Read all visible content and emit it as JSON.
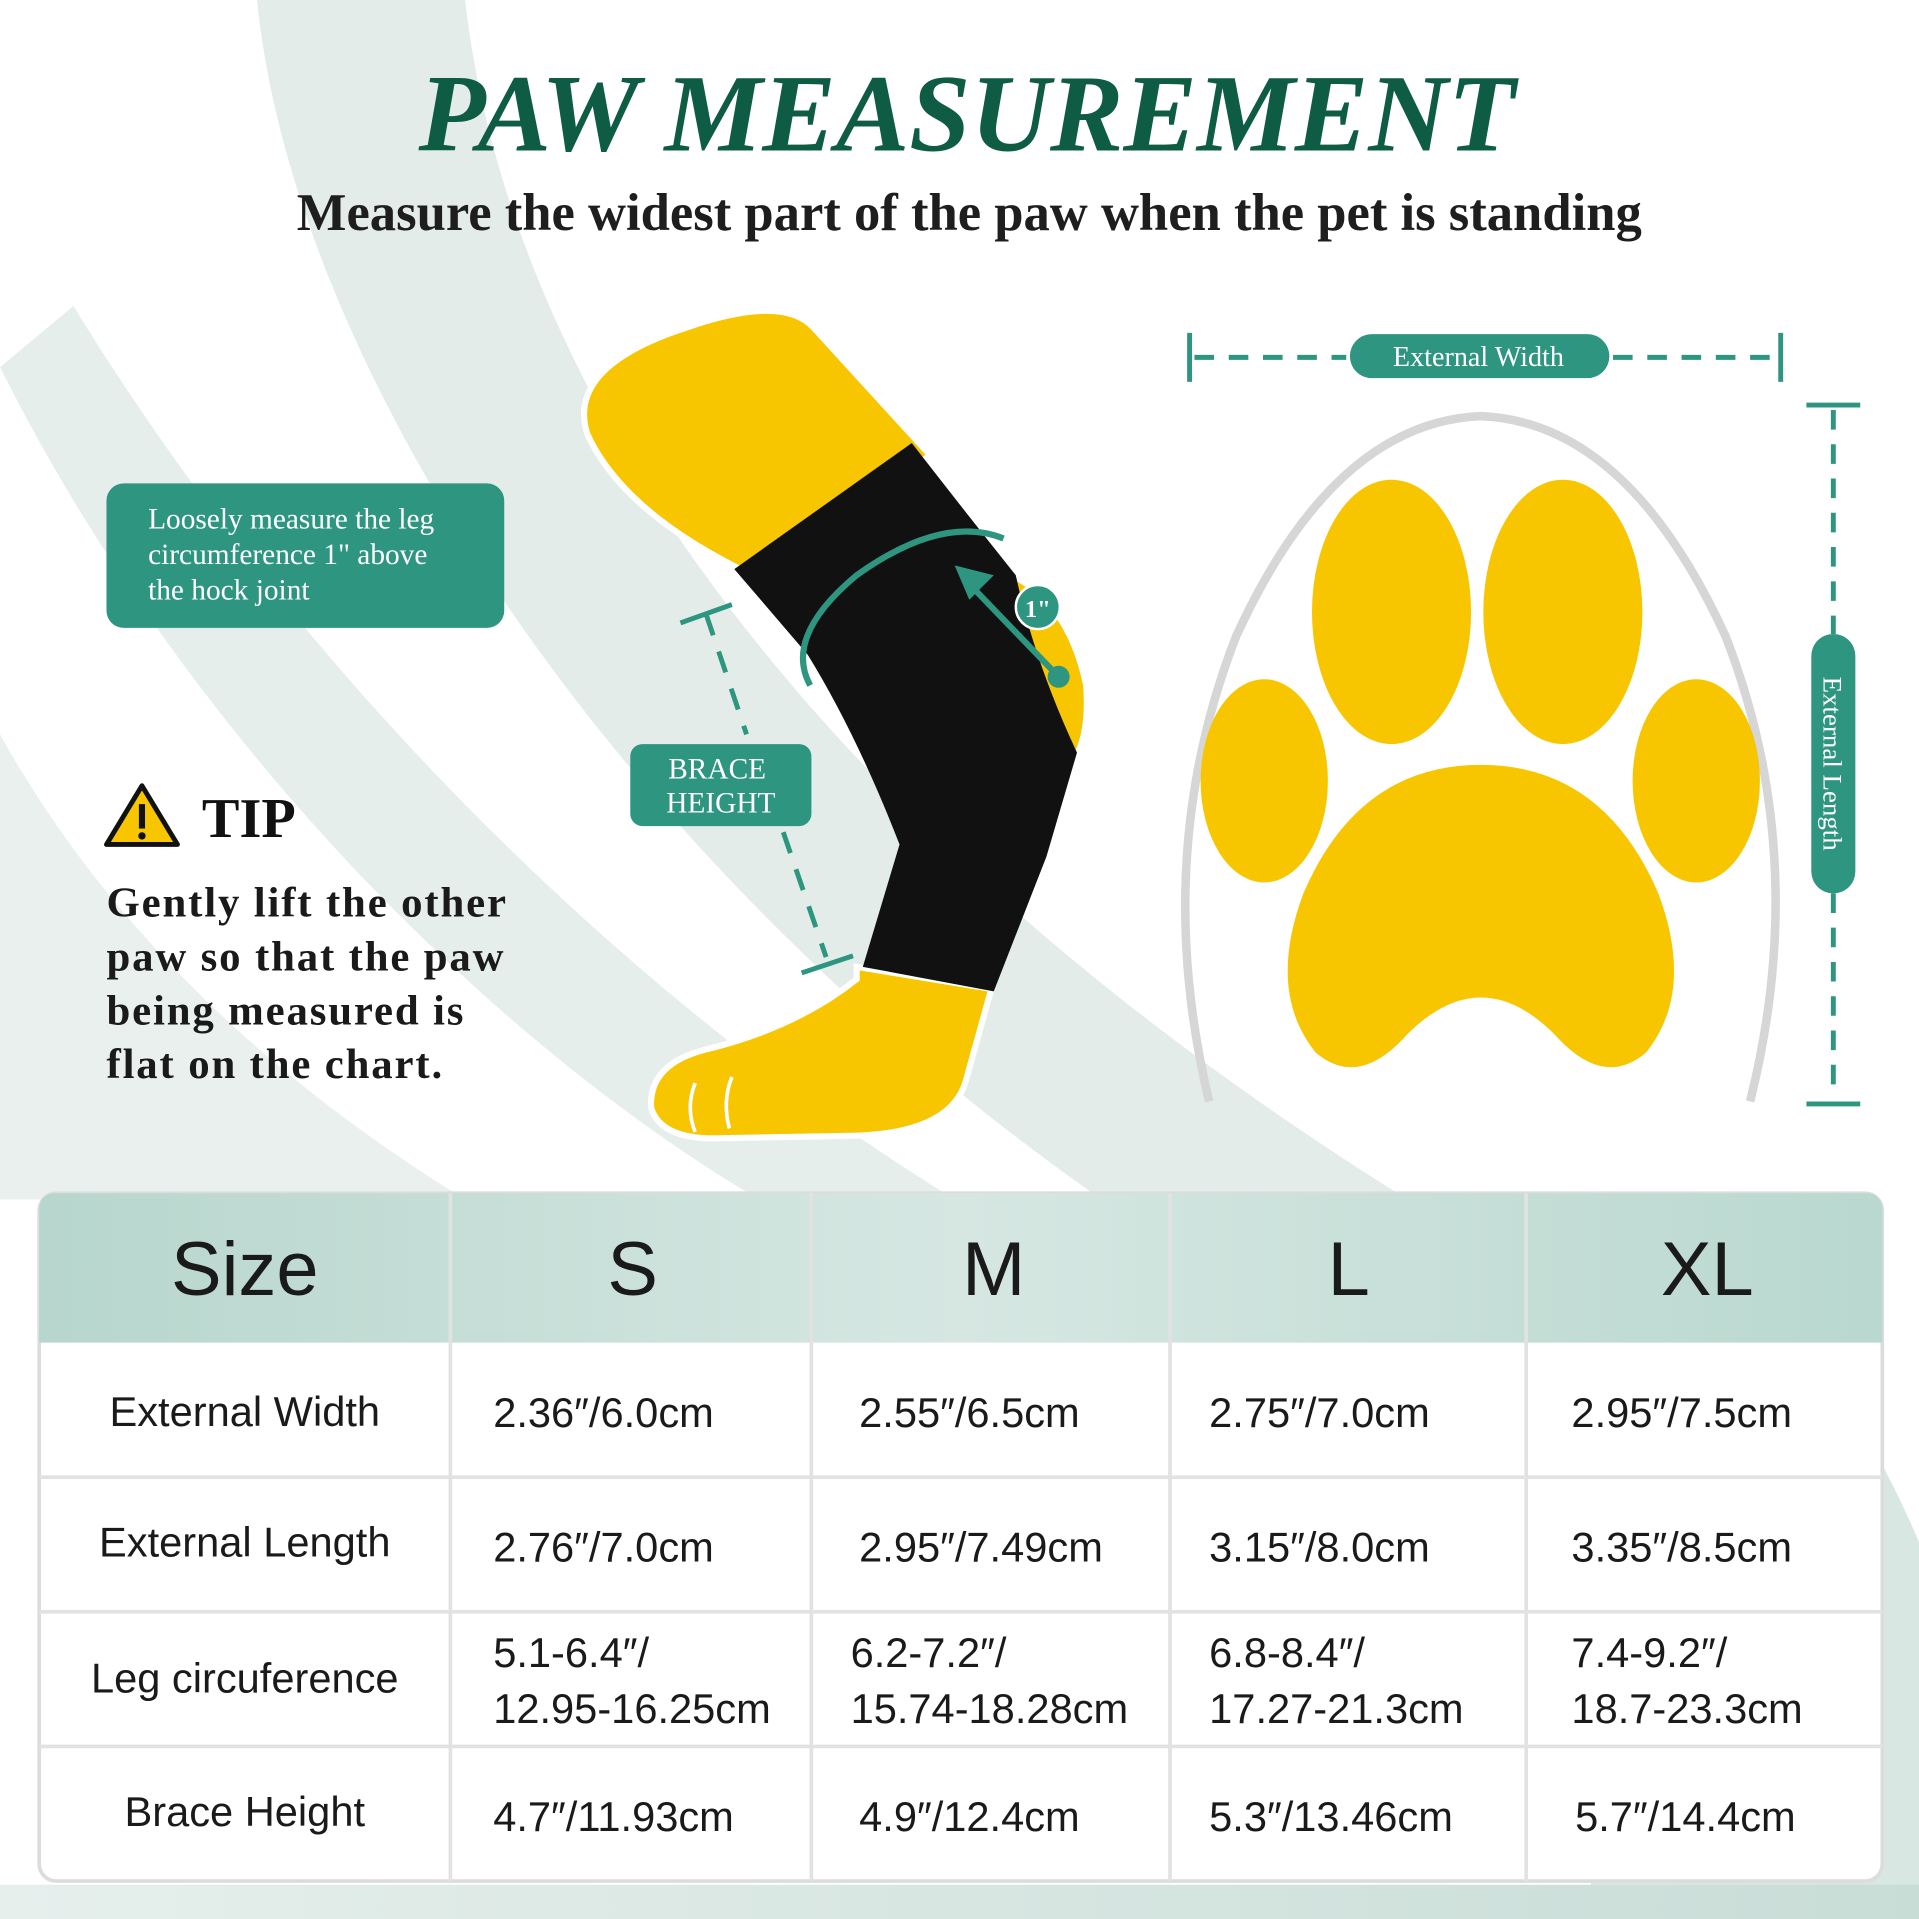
{
  "header": {
    "title": "PAW MEASUREMENT",
    "subtitle": "Measure the widest part of the paw when the pet is standing"
  },
  "colors": {
    "brand_green": "#0f5c44",
    "teal": "#2e9580",
    "paw_yellow": "#f7c600",
    "brace_black": "#111111",
    "table_header": "#b9d8cf"
  },
  "callout": {
    "lines": [
      "Loosely measure the leg",
      "circumference 1\" above",
      "the hock joint"
    ]
  },
  "tip": {
    "icon": "warning-icon",
    "title": "TIP",
    "lines": [
      "Gently lift the other",
      "paw so that the paw",
      "being measured is",
      "flat on the chart."
    ]
  },
  "diagram": {
    "brace_height_lines": [
      "BRACE",
      "HEIGHT"
    ],
    "offset_label": "1\"",
    "external_width": "External Width",
    "external_length": "External Length"
  },
  "table": {
    "headers": [
      "Size",
      "S",
      "M",
      "L",
      "XL"
    ],
    "rows": [
      {
        "label": "External Width",
        "values": [
          [
            "2.36″/6.0cm"
          ],
          [
            "2.55″/6.5cm"
          ],
          [
            "2.75″/7.0cm"
          ],
          [
            "2.95″/7.5cm"
          ]
        ]
      },
      {
        "label": "External Length",
        "values": [
          [
            "2.76″/7.0cm"
          ],
          [
            "2.95″/7.49cm"
          ],
          [
            "3.15″/8.0cm"
          ],
          [
            "3.35″/8.5cm"
          ]
        ]
      },
      {
        "label": "Leg circuference",
        "values": [
          [
            "5.1-6.4″/",
            "12.95-16.25cm"
          ],
          [
            "6.2-7.2″/",
            "15.74-18.28cm"
          ],
          [
            "6.8-8.4″/",
            "17.27-21.3cm"
          ],
          [
            "7.4-9.2″/",
            "18.7-23.3cm"
          ]
        ]
      },
      {
        "label": "Brace Height",
        "values": [
          [
            "4.7″/11.93cm"
          ],
          [
            "4.9″/12.4cm"
          ],
          [
            "5.3″/13.46cm"
          ],
          [
            "5.7″/14.4cm"
          ]
        ]
      }
    ]
  }
}
